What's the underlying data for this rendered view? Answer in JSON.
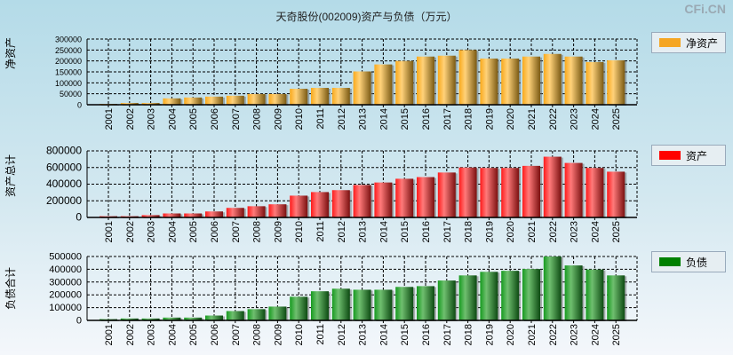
{
  "title": "天奇股份(002009)资产与负债（万元）",
  "watermark": "CFi.CN",
  "chart_data": [
    {
      "type": "bar",
      "ylabel": "净资产",
      "legend": "净资产",
      "color": "#f5a623",
      "ylim": [
        0,
        300000
      ],
      "yticks": [
        0,
        50000,
        100000,
        150000,
        200000,
        250000,
        300000
      ],
      "categories": [
        "2001",
        "2002",
        "2003",
        "2004",
        "2005",
        "2006",
        "2007",
        "2008",
        "2009",
        "2010",
        "2011",
        "2012",
        "2013",
        "2014",
        "2015",
        "2016",
        "2017",
        "2018",
        "2019",
        "2020",
        "2021",
        "2022",
        "2023",
        "2024",
        "2025"
      ],
      "values": [
        4000,
        8000,
        8000,
        29000,
        33000,
        37000,
        41000,
        49000,
        49000,
        73000,
        77000,
        77000,
        152000,
        184000,
        200000,
        220000,
        224000,
        250000,
        211000,
        211000,
        220000,
        232000,
        220000,
        195000,
        203000
      ]
    },
    {
      "type": "bar",
      "ylabel": "资产总计",
      "legend": "资产",
      "color": "#ee2a2a",
      "ylim": [
        0,
        800000
      ],
      "yticks": [
        0,
        200000,
        400000,
        600000,
        800000
      ],
      "categories": [
        "2001",
        "2002",
        "2003",
        "2004",
        "2005",
        "2006",
        "2007",
        "2008",
        "2009",
        "2010",
        "2011",
        "2012",
        "2013",
        "2014",
        "2015",
        "2016",
        "2017",
        "2018",
        "2019",
        "2020",
        "2021",
        "2022",
        "2023",
        "2024",
        "2025"
      ],
      "values": [
        15000,
        15000,
        28000,
        48000,
        48000,
        72000,
        115000,
        135000,
        158000,
        262000,
        305000,
        328000,
        390000,
        420000,
        465000,
        485000,
        540000,
        600000,
        595000,
        595000,
        620000,
        730000,
        655000,
        595000,
        550000
      ]
    },
    {
      "type": "bar",
      "ylabel": "负债合计",
      "legend": "负债",
      "color": "#1f8a2a",
      "ylim": [
        0,
        500000
      ],
      "yticks": [
        0,
        100000,
        200000,
        300000,
        400000,
        500000
      ],
      "categories": [
        "2001",
        "2002",
        "2003",
        "2004",
        "2005",
        "2006",
        "2007",
        "2008",
        "2009",
        "2010",
        "2011",
        "2012",
        "2013",
        "2014",
        "2015",
        "2016",
        "2017",
        "2018",
        "2019",
        "2020",
        "2021",
        "2022",
        "2023",
        "2024",
        "2025"
      ],
      "values": [
        10000,
        15000,
        15000,
        22000,
        22000,
        38000,
        73000,
        88000,
        108000,
        185000,
        228000,
        248000,
        240000,
        240000,
        262000,
        268000,
        312000,
        352000,
        380000,
        388000,
        402000,
        500000,
        430000,
        398000,
        352000
      ]
    }
  ]
}
